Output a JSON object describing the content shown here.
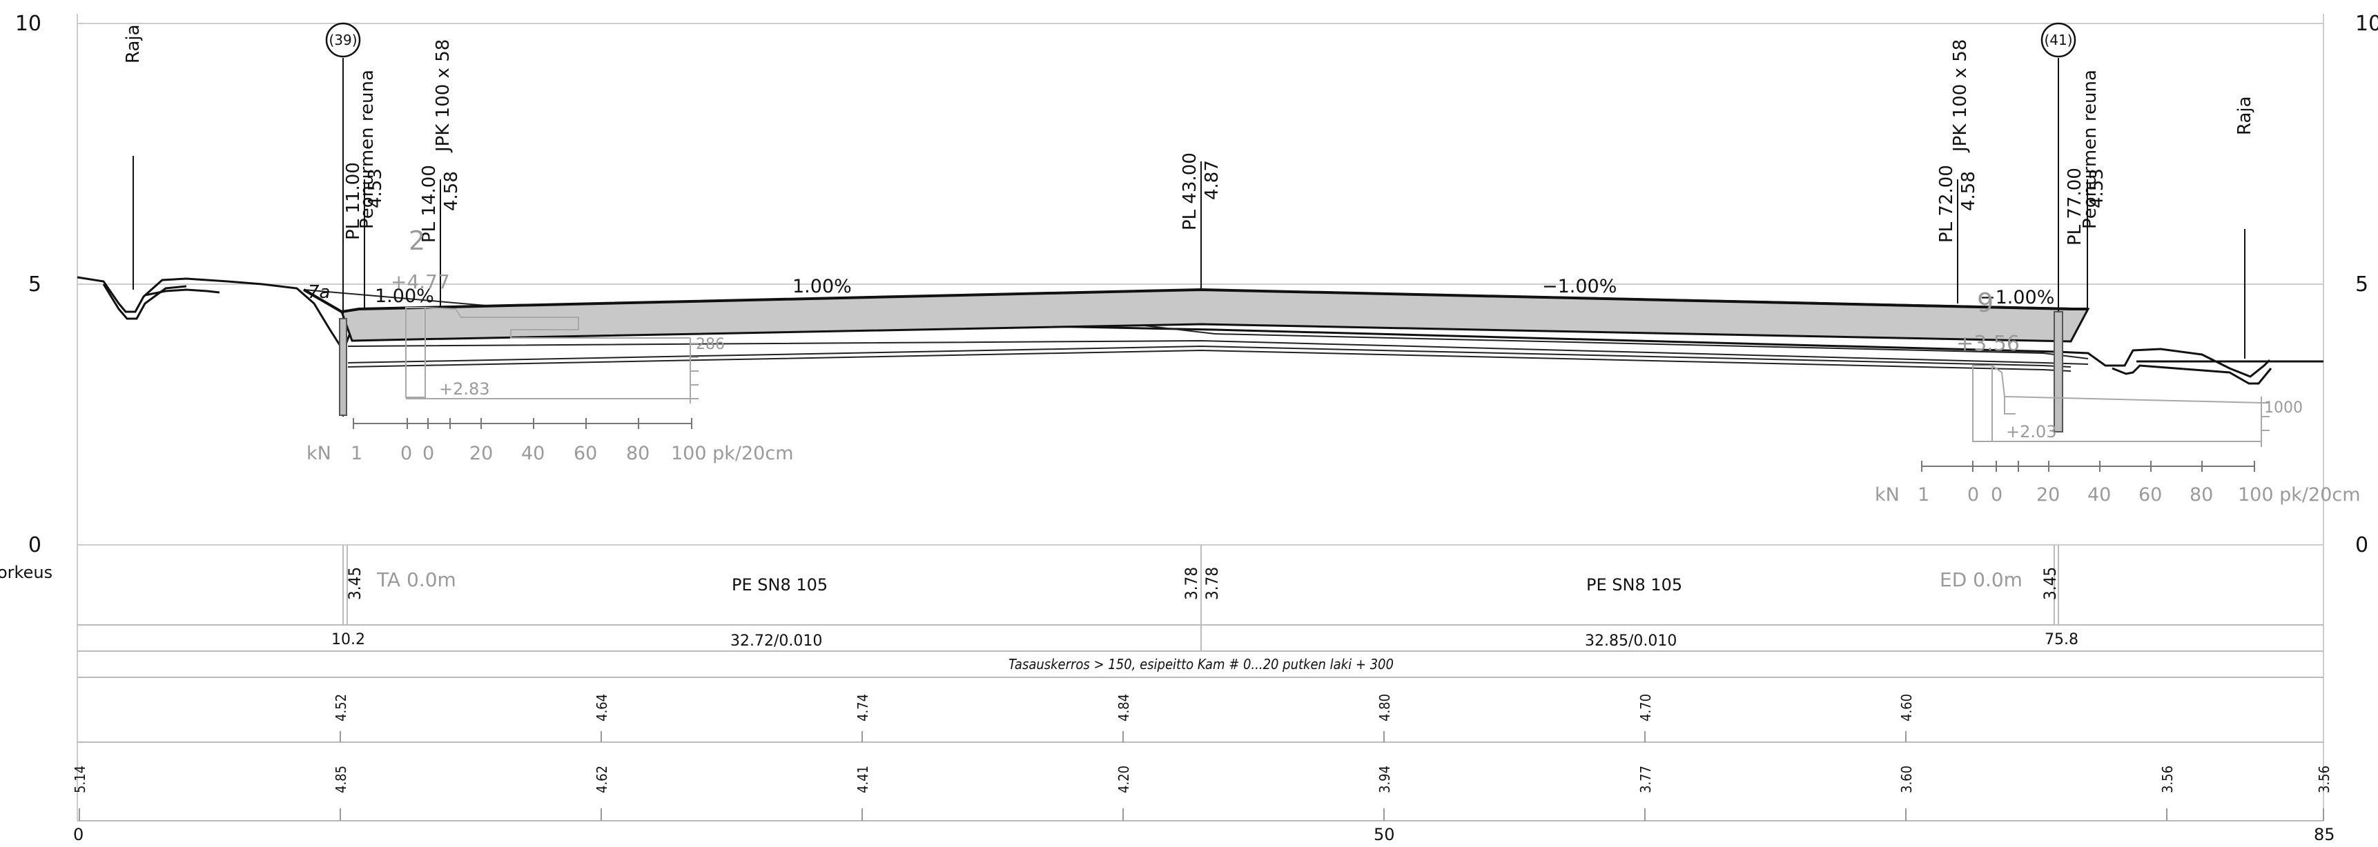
{
  "axis": {
    "left": [
      "10",
      "5",
      "0"
    ],
    "right": [
      "10",
      "5",
      "0"
    ],
    "row_label_fragment": "orkeus",
    "bottom": [
      "0",
      "50",
      "85"
    ]
  },
  "labels": {
    "raja_left": "Raja",
    "raja_right": "Raja",
    "well_left": "(39)",
    "well_right": "(41)",
    "edge_left": "Peonurmen reuna",
    "edge_right": "Peonurmen reuna",
    "pipe_left": "JPK 100 x 58",
    "pipe_right": "JPK 100 x 58"
  },
  "stations": {
    "pl11": "PL 11.00",
    "pl11_h": "4.53",
    "pl14": "PL 14.00",
    "pl14_h": "4.58",
    "pl43": "PL 43.00",
    "pl43_h": "4.87",
    "pl72": "PL 72.00",
    "pl72_h": "4.58",
    "pl77": "PL 77.00",
    "pl77_h": "4.53"
  },
  "slopes": {
    "a": "1.00%",
    "b": "1.00%",
    "c": "−1.00%",
    "d": "−1.00%"
  },
  "geo_left": {
    "n2": "2",
    "plus477": "+4.77",
    "plus283": "+2.83",
    "v286": "286",
    "ta": "TA  0.0m",
    "label": "7a"
  },
  "geo_right": {
    "n9": "9",
    "plus356": "+3.56",
    "plus203": "+2.03",
    "v1000": "1000",
    "ed": "ED  0.0m"
  },
  "scale_ticks": [
    "kN",
    "1",
    "0",
    "0",
    "20",
    "40",
    "60",
    "80",
    "100 pk/20cm"
  ],
  "table": {
    "row1": {
      "v345a": "3.45",
      "v378a": "3.78",
      "v378b": "3.78",
      "v345b": "3.45",
      "pipe1": "PE SN8 105",
      "pipe2": "PE SN8 105"
    },
    "row2": {
      "v102": "10.2",
      "len1": "32.72/0.010",
      "len2": "32.85/0.010",
      "v758": "75.8"
    },
    "row3": {
      "note": "Tasauskerros > 150, esipeitto Kam # 0...20 putken laki + 300"
    },
    "row4": [
      "4.52",
      "4.64",
      "4.74",
      "4.84",
      "4.80",
      "4.70",
      "4.60"
    ],
    "row5": [
      "5.14",
      "4.85",
      "4.62",
      "4.41",
      "4.20",
      "3.94",
      "3.77",
      "3.60",
      "3.56",
      "3.56"
    ]
  }
}
